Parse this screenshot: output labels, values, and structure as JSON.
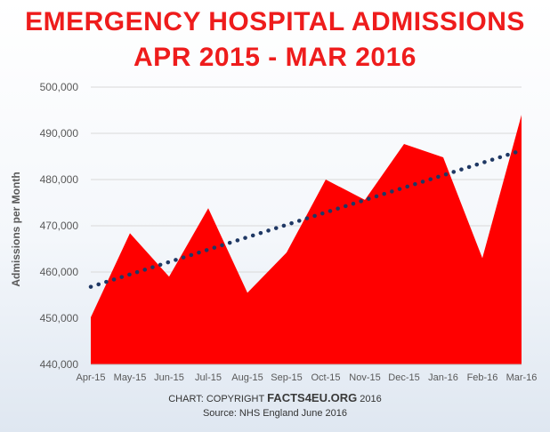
{
  "chart_data": {
    "type": "area",
    "title_line1": "EMERGENCY HOSPITAL ADMISSIONS",
    "title_line2": "APR 2015 - MAR 2016",
    "ylabel": "Admissions per Month",
    "categories": [
      "Apr-15",
      "May-15",
      "Jun-15",
      "Jul-15",
      "Aug-15",
      "Sep-15",
      "Oct-15",
      "Nov-15",
      "Dec-15",
      "Jan-16",
      "Feb-16",
      "Mar-16"
    ],
    "series": [
      {
        "values": [
          450200,
          468400,
          459000,
          473800,
          455500,
          464200,
          480000,
          475600,
          487700,
          484800,
          463000,
          494000
        ],
        "color": "#ff0000"
      }
    ],
    "trendline": {
      "style": "dotted",
      "color": "#1f3864",
      "start": 456800,
      "end": 486300
    },
    "ylim": [
      440000,
      500000
    ],
    "yticks": [
      440000,
      450000,
      460000,
      470000,
      480000,
      490000,
      500000
    ],
    "ytick_labels": [
      "440,000",
      "450,000",
      "460,000",
      "470,000",
      "480,000",
      "490,000",
      "500,000"
    ],
    "grid": true,
    "legend": "none"
  },
  "credit": {
    "prefix": "CHART: COPYRIGHT",
    "brand": "FACTS4EU.ORG",
    "suffix": "2016"
  },
  "source": "Source: NHS England June 2016"
}
